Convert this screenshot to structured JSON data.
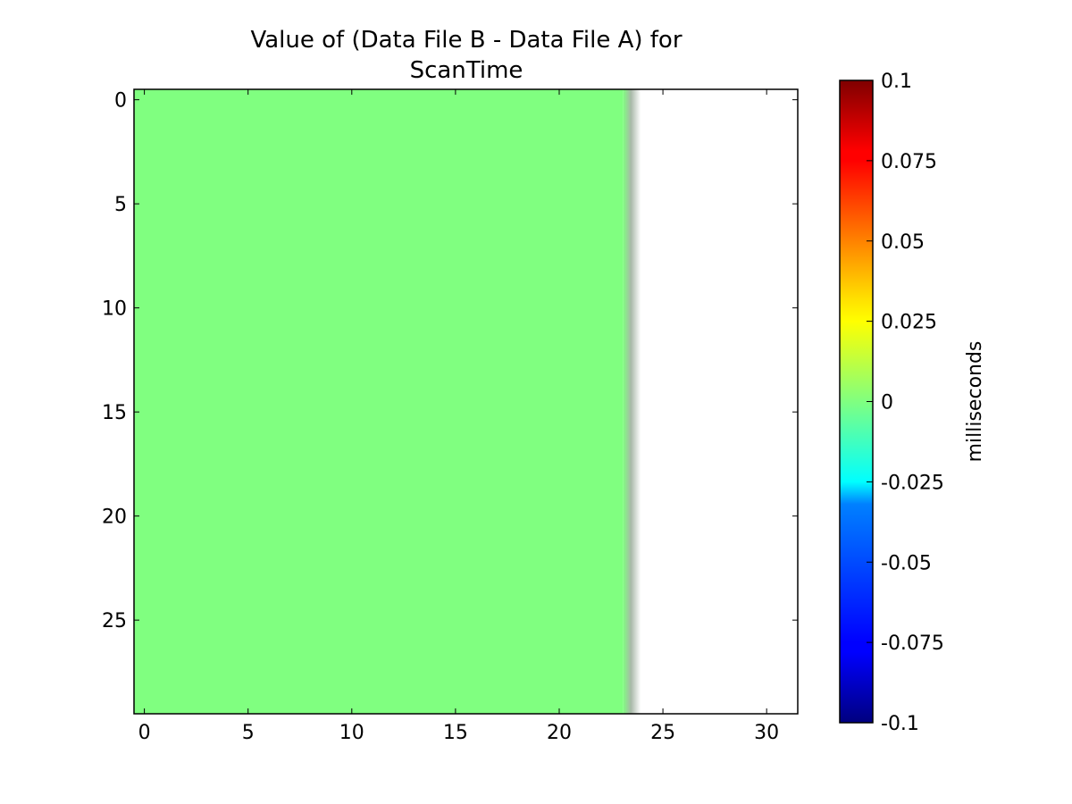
{
  "chart_data": {
    "type": "heatmap",
    "title_lines": [
      "Value of (Data File B - Data File A) for",
      "ScanTime"
    ],
    "xlabel": "",
    "ylabel": "",
    "grid": false,
    "x_extent": [
      -0.5,
      31.5
    ],
    "y_extent": [
      -0.5,
      29.5
    ],
    "y_inverted": true,
    "xticks": [
      0,
      5,
      10,
      15,
      20,
      25,
      30
    ],
    "yticks": [
      0,
      5,
      10,
      15,
      20,
      25
    ],
    "rows": 30,
    "cols": 32,
    "data_columns": 24,
    "cell_value": 0,
    "missing_columns": [
      24,
      25,
      26,
      27,
      28,
      29,
      30,
      31
    ],
    "colorbar": {
      "label": "milliseconds",
      "min": -0.1,
      "max": 0.1,
      "colormap": "jet",
      "ticks": [
        0.1,
        0.075,
        0.05,
        0.025,
        0,
        -0.025,
        -0.05,
        -0.075,
        -0.1
      ],
      "tick_labels": [
        "0.1",
        "0.075",
        "0.05",
        "0.025",
        "0",
        "-0.025",
        "-0.05",
        "-0.075",
        "-0.1"
      ]
    },
    "colors": {
      "zero": "#80ff80",
      "edge_blur": "#a8b8a8",
      "missing": "#ffffff"
    }
  }
}
